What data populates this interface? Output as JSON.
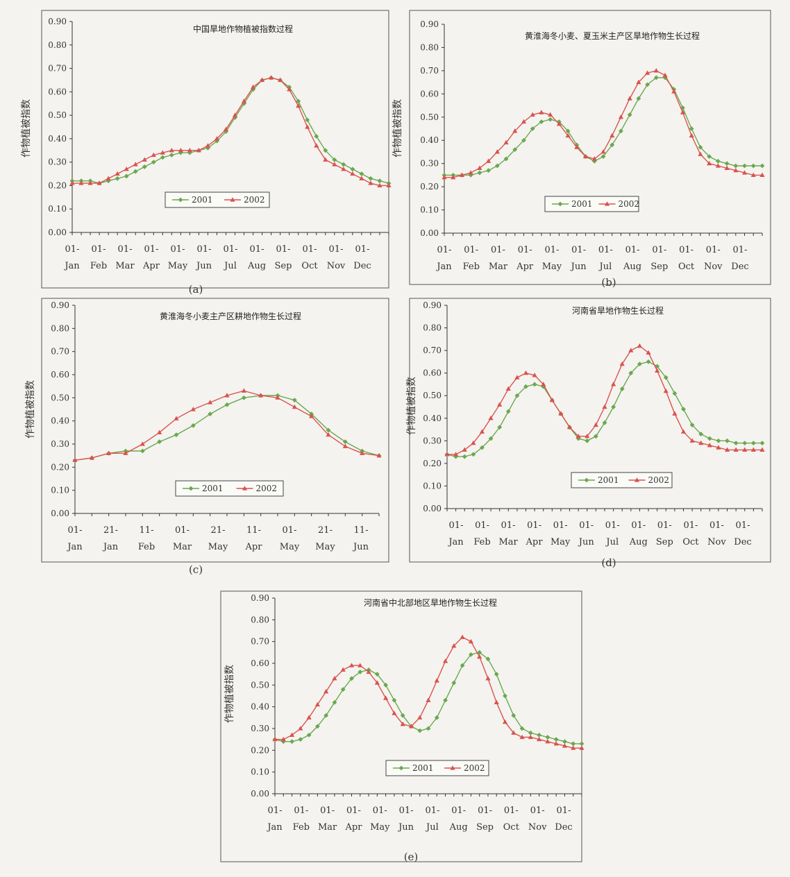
{
  "colors": {
    "background": "#f4f3ef",
    "series_2001": "#6aa84f",
    "series_2002": "#d9534f",
    "axis": "#333333"
  },
  "chart_data": [
    {
      "id": "a",
      "type": "line",
      "caption": "(a)",
      "title": "中国旱地作物植被指数过程",
      "ylabel": "作物植被指数",
      "xlabel": "",
      "ylim": [
        0,
        0.9
      ],
      "yticks": [
        "0.00",
        "0.10",
        "0.20",
        "0.30",
        "0.40",
        "0.50",
        "0.60",
        "0.70",
        "0.80",
        "0.90"
      ],
      "xticks": [
        [
          "01-",
          "Jan"
        ],
        [
          "01-",
          "Feb"
        ],
        [
          "01-",
          "Mar"
        ],
        [
          "01-",
          "Apr"
        ],
        [
          "01-",
          "May"
        ],
        [
          "01-",
          "Jun"
        ],
        [
          "01-",
          "Jul"
        ],
        [
          "01-",
          "Aug"
        ],
        [
          "01-",
          "Sep"
        ],
        [
          "01-",
          "Oct"
        ],
        [
          "01-",
          "Nov"
        ],
        [
          "01-",
          "Dec"
        ]
      ],
      "legend": [
        "2001",
        "2002"
      ],
      "legend_position": "bottom-center",
      "series": [
        {
          "name": "2001",
          "values": [
            0.22,
            0.22,
            0.22,
            0.21,
            0.22,
            0.23,
            0.24,
            0.26,
            0.28,
            0.3,
            0.32,
            0.33,
            0.34,
            0.34,
            0.35,
            0.36,
            0.39,
            0.43,
            0.49,
            0.55,
            0.61,
            0.65,
            0.66,
            0.65,
            0.62,
            0.56,
            0.48,
            0.41,
            0.35,
            0.31,
            0.29,
            0.27,
            0.25,
            0.23,
            0.22,
            0.21
          ]
        },
        {
          "name": "2002",
          "values": [
            0.21,
            0.21,
            0.21,
            0.21,
            0.23,
            0.25,
            0.27,
            0.29,
            0.31,
            0.33,
            0.34,
            0.35,
            0.35,
            0.35,
            0.35,
            0.37,
            0.4,
            0.44,
            0.5,
            0.56,
            0.62,
            0.65,
            0.66,
            0.65,
            0.61,
            0.54,
            0.45,
            0.37,
            0.31,
            0.29,
            0.27,
            0.25,
            0.23,
            0.21,
            0.2,
            0.2
          ]
        }
      ]
    },
    {
      "id": "b",
      "type": "line",
      "caption": "(b)",
      "title": "黄淮海冬小麦、夏玉米主产区旱地作物生长过程",
      "ylabel": "作物植被指数",
      "xlabel": "",
      "ylim": [
        0,
        0.9
      ],
      "yticks": [
        "0.00",
        "0.10",
        "0.20",
        "0.30",
        "0.40",
        "0.50",
        "0.60",
        "0.70",
        "0.80",
        "0.90"
      ],
      "xticks": [
        [
          "01-",
          "Jan"
        ],
        [
          "01-",
          "Feb"
        ],
        [
          "01-",
          "Mar"
        ],
        [
          "01-",
          "Apr"
        ],
        [
          "01-",
          "May"
        ],
        [
          "01-",
          "Jun"
        ],
        [
          "01-",
          "Jul"
        ],
        [
          "01-",
          "Aug"
        ],
        [
          "01-",
          "Sep"
        ],
        [
          "01-",
          "Oct"
        ],
        [
          "01-",
          "Nov"
        ],
        [
          "01-",
          "Dec"
        ]
      ],
      "legend": [
        "2001",
        "2002"
      ],
      "legend_position": "bottom-center",
      "series": [
        {
          "name": "2001",
          "values": [
            0.25,
            0.25,
            0.25,
            0.25,
            0.26,
            0.27,
            0.29,
            0.32,
            0.36,
            0.4,
            0.45,
            0.48,
            0.49,
            0.48,
            0.44,
            0.38,
            0.33,
            0.31,
            0.33,
            0.38,
            0.44,
            0.51,
            0.58,
            0.64,
            0.67,
            0.67,
            0.62,
            0.54,
            0.45,
            0.37,
            0.33,
            0.31,
            0.3,
            0.29,
            0.29,
            0.29,
            0.29
          ]
        },
        {
          "name": "2002",
          "values": [
            0.24,
            0.24,
            0.25,
            0.26,
            0.28,
            0.31,
            0.35,
            0.39,
            0.44,
            0.48,
            0.51,
            0.52,
            0.51,
            0.47,
            0.42,
            0.37,
            0.33,
            0.32,
            0.35,
            0.42,
            0.5,
            0.58,
            0.65,
            0.69,
            0.7,
            0.68,
            0.61,
            0.52,
            0.42,
            0.34,
            0.3,
            0.29,
            0.28,
            0.27,
            0.26,
            0.25,
            0.25
          ]
        }
      ]
    },
    {
      "id": "c",
      "type": "line",
      "caption": "(c)",
      "title": "黄淮海冬小麦主产区耕地作物生长过程",
      "ylabel": "作物植被指数",
      "xlabel": "",
      "ylim": [
        0,
        0.9
      ],
      "yticks": [
        "0.00",
        "0.10",
        "0.20",
        "0.30",
        "0.40",
        "0.50",
        "0.60",
        "0.70",
        "0.80",
        "0.90"
      ],
      "xticks": [
        [
          "01-",
          "Jan"
        ],
        [
          "21-",
          "Jan"
        ],
        [
          "11-",
          "Feb"
        ],
        [
          "01-",
          "Mar"
        ],
        [
          "21-",
          "May"
        ],
        [
          "11-",
          "Apr"
        ],
        [
          "01-",
          "May"
        ],
        [
          "21-",
          "May"
        ],
        [
          "11-",
          "Jun"
        ]
      ],
      "legend": [
        "2001",
        "2002"
      ],
      "legend_position": "bottom-center",
      "series": [
        {
          "name": "2001",
          "values": [
            0.23,
            0.24,
            0.26,
            0.27,
            0.27,
            0.31,
            0.34,
            0.38,
            0.43,
            0.47,
            0.5,
            0.51,
            0.51,
            0.49,
            0.43,
            0.36,
            0.31,
            0.27,
            0.25
          ]
        },
        {
          "name": "2002",
          "values": [
            0.23,
            0.24,
            0.26,
            0.26,
            0.3,
            0.35,
            0.41,
            0.45,
            0.48,
            0.51,
            0.53,
            0.51,
            0.5,
            0.46,
            0.42,
            0.34,
            0.29,
            0.26,
            0.25
          ]
        }
      ]
    },
    {
      "id": "d",
      "type": "line",
      "caption": "(d)",
      "title": "河南省旱地作物生长过程",
      "ylabel": "作物植被指数",
      "xlabel": "",
      "ylim": [
        0,
        0.9
      ],
      "yticks": [
        "0.00",
        "0.10",
        "0.20",
        "0.30",
        "0.40",
        "0.50",
        "0.60",
        "0.70",
        "0.80",
        "0.90"
      ],
      "xticks": [
        [
          "01-",
          "Jan"
        ],
        [
          "01-",
          "Feb"
        ],
        [
          "01-",
          "Mar"
        ],
        [
          "01-",
          "Apr"
        ],
        [
          "01-",
          "May"
        ],
        [
          "01-",
          "Jun"
        ],
        [
          "01-",
          "Jul"
        ],
        [
          "01-",
          "Aug"
        ],
        [
          "01-",
          "Sep"
        ],
        [
          "01-",
          "Oct"
        ],
        [
          "01-",
          "Nov"
        ],
        [
          "01-",
          "Dec"
        ]
      ],
      "legend": [
        "2001",
        "2002"
      ],
      "legend_position": "bottom-center",
      "series": [
        {
          "name": "2001",
          "values": [
            0.24,
            0.23,
            0.23,
            0.24,
            0.27,
            0.31,
            0.36,
            0.43,
            0.5,
            0.54,
            0.55,
            0.54,
            0.48,
            0.42,
            0.36,
            0.31,
            0.3,
            0.32,
            0.38,
            0.45,
            0.53,
            0.6,
            0.64,
            0.65,
            0.63,
            0.58,
            0.51,
            0.44,
            0.37,
            0.33,
            0.31,
            0.3,
            0.3,
            0.29,
            0.29,
            0.29,
            0.29
          ]
        },
        {
          "name": "2002",
          "values": [
            0.24,
            0.24,
            0.26,
            0.29,
            0.34,
            0.4,
            0.46,
            0.53,
            0.58,
            0.6,
            0.59,
            0.55,
            0.48,
            0.42,
            0.36,
            0.32,
            0.32,
            0.37,
            0.45,
            0.55,
            0.64,
            0.7,
            0.72,
            0.69,
            0.61,
            0.52,
            0.42,
            0.34,
            0.3,
            0.29,
            0.28,
            0.27,
            0.26,
            0.26,
            0.26,
            0.26,
            0.26
          ]
        }
      ]
    },
    {
      "id": "e",
      "type": "line",
      "caption": "(e)",
      "title": "河南省中北部地区旱地作物生长过程",
      "ylabel": "作物植被指数",
      "xlabel": "",
      "ylim": [
        0,
        0.9
      ],
      "yticks": [
        "0.00",
        "0.10",
        "0.20",
        "0.30",
        "0.40",
        "0.50",
        "0.60",
        "0.70",
        "0.80",
        "0.90"
      ],
      "xticks": [
        [
          "01-",
          "Jan"
        ],
        [
          "01-",
          "Feb"
        ],
        [
          "01-",
          "Mar"
        ],
        [
          "01-",
          "Apr"
        ],
        [
          "01-",
          "May"
        ],
        [
          "01-",
          "Jun"
        ],
        [
          "01-",
          "Jul"
        ],
        [
          "01-",
          "Aug"
        ],
        [
          "01-",
          "Sep"
        ],
        [
          "01-",
          "Oct"
        ],
        [
          "01-",
          "Nov"
        ],
        [
          "01-",
          "Dec"
        ]
      ],
      "legend": [
        "2001",
        "2002"
      ],
      "legend_position": "bottom-center",
      "series": [
        {
          "name": "2001",
          "values": [
            0.25,
            0.24,
            0.24,
            0.25,
            0.27,
            0.31,
            0.36,
            0.42,
            0.48,
            0.53,
            0.56,
            0.57,
            0.55,
            0.5,
            0.43,
            0.36,
            0.31,
            0.29,
            0.3,
            0.35,
            0.43,
            0.51,
            0.59,
            0.64,
            0.65,
            0.62,
            0.55,
            0.45,
            0.36,
            0.3,
            0.28,
            0.27,
            0.26,
            0.25,
            0.24,
            0.23,
            0.23
          ]
        },
        {
          "name": "2002",
          "values": [
            0.25,
            0.25,
            0.27,
            0.3,
            0.35,
            0.41,
            0.47,
            0.53,
            0.57,
            0.59,
            0.59,
            0.56,
            0.51,
            0.44,
            0.37,
            0.32,
            0.31,
            0.35,
            0.43,
            0.52,
            0.61,
            0.68,
            0.72,
            0.7,
            0.63,
            0.53,
            0.42,
            0.33,
            0.28,
            0.26,
            0.26,
            0.25,
            0.24,
            0.23,
            0.22,
            0.21,
            0.21
          ]
        }
      ]
    }
  ]
}
